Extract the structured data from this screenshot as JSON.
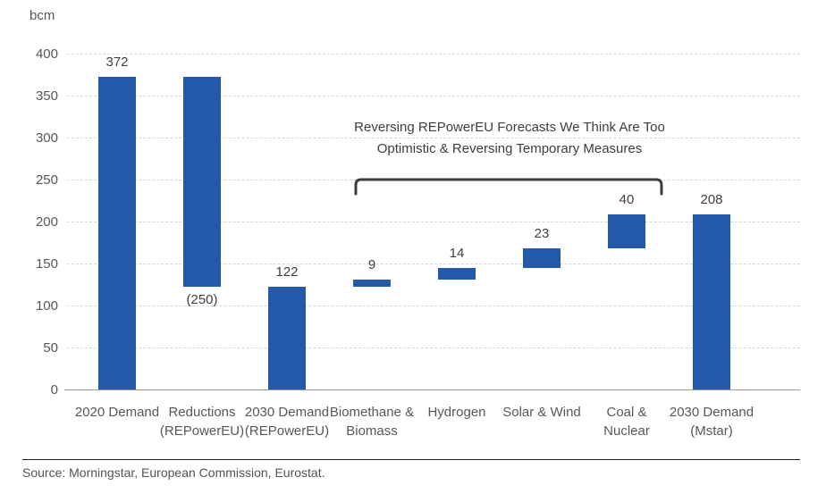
{
  "page": {
    "source": "Source: Morningstar, European Commission, Eurostat."
  },
  "annotation": {
    "line1": "Reversing REPowerEU Forecasts We Think Are Too",
    "line2": "Optimistic & Reversing Temporary Measures"
  },
  "chart_data": {
    "type": "bar",
    "subtype": "waterfall",
    "title": "",
    "xlabel": "",
    "ylabel": "bcm",
    "ylim": [
      0,
      400
    ],
    "yticks": [
      0,
      50,
      100,
      150,
      200,
      250,
      300,
      350,
      400
    ],
    "grid": "horizontal-dashed",
    "legend": "none",
    "categories": [
      "2020 Demand",
      "Reductions\n(REPowerEU)",
      "2030 Demand\n(REPowerEU)",
      "Biomethane &\nBiomass",
      "Hydrogen",
      "Solar & Wind",
      "Coal &\nNuclear",
      "2030 Demand\n(Mstar)"
    ],
    "bars": [
      {
        "name": "2020 Demand",
        "base": 0,
        "top": 372,
        "label": "372",
        "label_position": "above"
      },
      {
        "name": "Reductions (REPowerEU)",
        "base": 122,
        "top": 372,
        "label": "(250)",
        "label_position": "below"
      },
      {
        "name": "2030 Demand (REPowerEU)",
        "base": 0,
        "top": 122,
        "label": "122",
        "label_position": "above"
      },
      {
        "name": "Biomethane & Biomass",
        "base": 122,
        "top": 131,
        "label": "9",
        "label_position": "above"
      },
      {
        "name": "Hydrogen",
        "base": 131,
        "top": 145,
        "label": "14",
        "label_position": "above"
      },
      {
        "name": "Solar & Wind",
        "base": 145,
        "top": 168,
        "label": "23",
        "label_position": "above"
      },
      {
        "name": "Coal & Nuclear",
        "base": 168,
        "top": 208,
        "label": "40",
        "label_position": "above"
      },
      {
        "name": "2030 Demand (Mstar)",
        "base": 0,
        "top": 208,
        "label": "208",
        "label_position": "above"
      }
    ],
    "bracket_spans_categories": [
      "Biomethane & Biomass",
      "Coal & Nuclear"
    ],
    "colors": {
      "bar": "#2458a8",
      "gridline": "#d7d7d7",
      "zero_axis": "#9c9c9c",
      "tick_label": "#54575c",
      "value_label": "#3e3e3e",
      "annotation": "#3e3e3e",
      "bracket": "#3e3e3e"
    }
  }
}
